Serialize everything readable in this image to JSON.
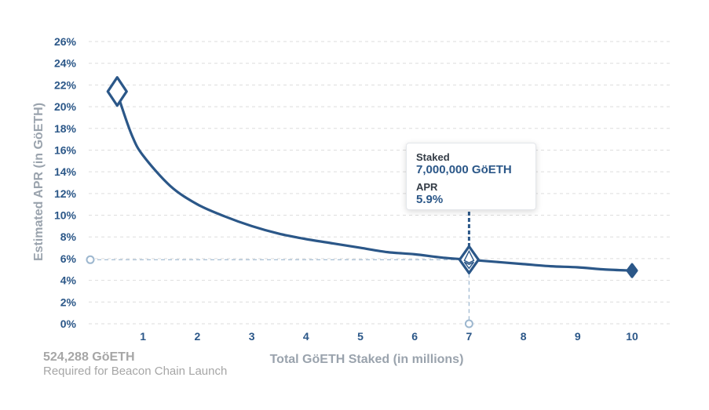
{
  "chart_data": {
    "type": "line",
    "xlabel": "Total GöETH Staked  (in millions)",
    "ylabel": "Estimated APR (in GöETH)",
    "x_ticks": [
      "1",
      "2",
      "3",
      "4",
      "5",
      "6",
      "7",
      "8",
      "9",
      "10"
    ],
    "y_ticks": [
      "0%",
      "2%",
      "4%",
      "6%",
      "8%",
      "10%",
      "12%",
      "14%",
      "16%",
      "18%",
      "20%",
      "22%",
      "24%",
      "26%"
    ],
    "xlim": [
      0,
      10.7
    ],
    "ylim": [
      0,
      26
    ],
    "grid": true,
    "series": [
      {
        "points": [
          {
            "x": 0.524,
            "y": 21.4
          },
          {
            "x": 0.6,
            "y": 20.1
          },
          {
            "x": 0.8,
            "y": 17.3
          },
          {
            "x": 1.0,
            "y": 15.5
          },
          {
            "x": 1.5,
            "y": 12.7
          },
          {
            "x": 2.0,
            "y": 11.0
          },
          {
            "x": 2.5,
            "y": 9.9
          },
          {
            "x": 3.0,
            "y": 9.0
          },
          {
            "x": 3.5,
            "y": 8.3
          },
          {
            "x": 4.0,
            "y": 7.8
          },
          {
            "x": 4.5,
            "y": 7.4
          },
          {
            "x": 5.0,
            "y": 7.0
          },
          {
            "x": 5.5,
            "y": 6.6
          },
          {
            "x": 6.0,
            "y": 6.4
          },
          {
            "x": 6.5,
            "y": 6.1
          },
          {
            "x": 7.0,
            "y": 5.9
          },
          {
            "x": 7.5,
            "y": 5.7
          },
          {
            "x": 8.0,
            "y": 5.5
          },
          {
            "x": 8.5,
            "y": 5.3
          },
          {
            "x": 9.0,
            "y": 5.2
          },
          {
            "x": 9.5,
            "y": 5.0
          },
          {
            "x": 10.0,
            "y": 4.9
          }
        ]
      }
    ],
    "highlight": {
      "x": 7.0,
      "y": 5.9
    },
    "start_point": {
      "x": 0.524,
      "y": 21.4
    },
    "end_point": {
      "x": 10.0,
      "y": 4.9
    }
  },
  "tooltip": {
    "staked_label": "Staked",
    "staked_value": "7,000,000 GöETH",
    "apr_label": "APR",
    "apr_value": "5.9%"
  },
  "launch_note": {
    "value": "524,288 GöETH",
    "description": "Required for Beacon Chain Launch"
  },
  "colors": {
    "line": "#2b5788",
    "tick_text": "#2b5788",
    "axis_title": "#9aa3ad",
    "grid": "#dddddd",
    "guide": "#9db7cf"
  }
}
